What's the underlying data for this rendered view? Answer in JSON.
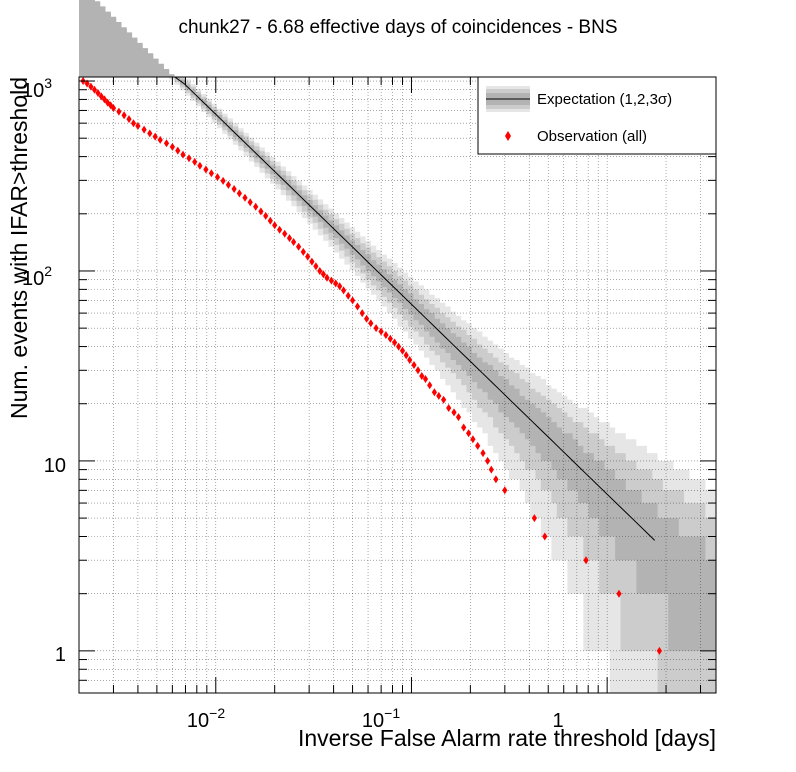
{
  "chart_data": {
    "type": "scatter",
    "title": "chunk27 - 6.68 effective days of coincidences - BNS",
    "xlabel": "Inverse False Alarm rate threshold [days]",
    "ylabel": "Num. events with IFAR>threshold",
    "xscale": "log",
    "yscale": "log",
    "xlim": [
      0.002,
      3.6
    ],
    "ylim": [
      0.6,
      1050
    ],
    "grid": true,
    "legend_position": "top-right",
    "colors": {
      "observation": "#ff0000",
      "expectation_line": "#000000",
      "band_1sigma": "#b3b3b3",
      "band_2sigma": "#cccccc",
      "band_3sigma": "#e6e6e6"
    },
    "x_ticks": [
      {
        "base": "10",
        "exp": "−2",
        "value": 0.01
      },
      {
        "base": "10",
        "exp": "−1",
        "value": 0.1
      },
      {
        "base": "1",
        "exp": "",
        "value": 1
      }
    ],
    "y_ticks": [
      {
        "base": "10",
        "exp": "3",
        "value": 1000
      },
      {
        "base": "10",
        "exp": "2",
        "value": 100
      },
      {
        "base": "10",
        "exp": "",
        "value": 10
      },
      {
        "base": "1",
        "exp": "",
        "value": 1
      }
    ],
    "legend": [
      {
        "label": "Expectation (1,2,3σ)",
        "kind": "band-line"
      },
      {
        "label": "Observation (all)",
        "kind": "marker"
      }
    ],
    "expectation": {
      "total_days": 6.68,
      "line_x_range": [
        0.002,
        1.75
      ]
    },
    "bands": {
      "x_min": 0.002,
      "x_max": 3.6,
      "sigma_levels": [
        1,
        2,
        3
      ]
    },
    "observation": [
      {
        "x": 0.0021,
        "y": 1000
      },
      {
        "x": 0.0022,
        "y": 970
      },
      {
        "x": 0.0023,
        "y": 935
      },
      {
        "x": 0.0024,
        "y": 900
      },
      {
        "x": 0.0025,
        "y": 865
      },
      {
        "x": 0.0026,
        "y": 830
      },
      {
        "x": 0.0027,
        "y": 800
      },
      {
        "x": 0.0028,
        "y": 770
      },
      {
        "x": 0.0029,
        "y": 745
      },
      {
        "x": 0.003,
        "y": 720
      },
      {
        "x": 0.0032,
        "y": 690
      },
      {
        "x": 0.0034,
        "y": 660
      },
      {
        "x": 0.0036,
        "y": 630
      },
      {
        "x": 0.0038,
        "y": 600
      },
      {
        "x": 0.004,
        "y": 580
      },
      {
        "x": 0.0043,
        "y": 555
      },
      {
        "x": 0.0046,
        "y": 530
      },
      {
        "x": 0.0049,
        "y": 510
      },
      {
        "x": 0.0052,
        "y": 490
      },
      {
        "x": 0.0056,
        "y": 470
      },
      {
        "x": 0.006,
        "y": 450
      },
      {
        "x": 0.0064,
        "y": 430
      },
      {
        "x": 0.0068,
        "y": 410
      },
      {
        "x": 0.0073,
        "y": 392
      },
      {
        "x": 0.0078,
        "y": 375
      },
      {
        "x": 0.0083,
        "y": 358
      },
      {
        "x": 0.0089,
        "y": 342
      },
      {
        "x": 0.0095,
        "y": 327
      },
      {
        "x": 0.0102,
        "y": 312
      },
      {
        "x": 0.0109,
        "y": 298
      },
      {
        "x": 0.0116,
        "y": 284
      },
      {
        "x": 0.0124,
        "y": 270
      },
      {
        "x": 0.0132,
        "y": 256
      },
      {
        "x": 0.0141,
        "y": 243
      },
      {
        "x": 0.015,
        "y": 230
      },
      {
        "x": 0.016,
        "y": 218
      },
      {
        "x": 0.017,
        "y": 206
      },
      {
        "x": 0.018,
        "y": 195
      },
      {
        "x": 0.019,
        "y": 184
      },
      {
        "x": 0.02,
        "y": 174
      },
      {
        "x": 0.0212,
        "y": 165
      },
      {
        "x": 0.0225,
        "y": 157
      },
      {
        "x": 0.0238,
        "y": 149
      },
      {
        "x": 0.025,
        "y": 142
      },
      {
        "x": 0.0265,
        "y": 134
      },
      {
        "x": 0.028,
        "y": 126
      },
      {
        "x": 0.0295,
        "y": 119
      },
      {
        "x": 0.031,
        "y": 112
      },
      {
        "x": 0.0325,
        "y": 106
      },
      {
        "x": 0.034,
        "y": 100
      },
      {
        "x": 0.0355,
        "y": 96
      },
      {
        "x": 0.037,
        "y": 92
      },
      {
        "x": 0.039,
        "y": 89
      },
      {
        "x": 0.041,
        "y": 86
      },
      {
        "x": 0.043,
        "y": 83
      },
      {
        "x": 0.045,
        "y": 79
      },
      {
        "x": 0.0475,
        "y": 74
      },
      {
        "x": 0.05,
        "y": 70
      },
      {
        "x": 0.053,
        "y": 65
      },
      {
        "x": 0.056,
        "y": 60
      },
      {
        "x": 0.059,
        "y": 56
      },
      {
        "x": 0.062,
        "y": 53
      },
      {
        "x": 0.066,
        "y": 50
      },
      {
        "x": 0.07,
        "y": 48
      },
      {
        "x": 0.074,
        "y": 46
      },
      {
        "x": 0.078,
        "y": 44
      },
      {
        "x": 0.082,
        "y": 42
      },
      {
        "x": 0.086,
        "y": 40
      },
      {
        "x": 0.09,
        "y": 38
      },
      {
        "x": 0.094,
        "y": 36
      },
      {
        "x": 0.098,
        "y": 34
      },
      {
        "x": 0.103,
        "y": 32
      },
      {
        "x": 0.108,
        "y": 30
      },
      {
        "x": 0.113,
        "y": 28
      },
      {
        "x": 0.118,
        "y": 27
      },
      {
        "x": 0.124,
        "y": 25
      },
      {
        "x": 0.131,
        "y": 23
      },
      {
        "x": 0.138,
        "y": 22
      },
      {
        "x": 0.146,
        "y": 21
      },
      {
        "x": 0.155,
        "y": 19
      },
      {
        "x": 0.165,
        "y": 18
      },
      {
        "x": 0.174,
        "y": 17
      },
      {
        "x": 0.185,
        "y": 15
      },
      {
        "x": 0.196,
        "y": 14
      },
      {
        "x": 0.206,
        "y": 13
      },
      {
        "x": 0.218,
        "y": 12
      },
      {
        "x": 0.232,
        "y": 11
      },
      {
        "x": 0.245,
        "y": 10
      },
      {
        "x": 0.256,
        "y": 9
      },
      {
        "x": 0.27,
        "y": 8
      },
      {
        "x": 0.3,
        "y": 7
      },
      {
        "x": 0.425,
        "y": 5
      },
      {
        "x": 0.48,
        "y": 4
      },
      {
        "x": 0.78,
        "y": 3
      },
      {
        "x": 1.15,
        "y": 2
      },
      {
        "x": 1.85,
        "y": 1
      }
    ]
  }
}
